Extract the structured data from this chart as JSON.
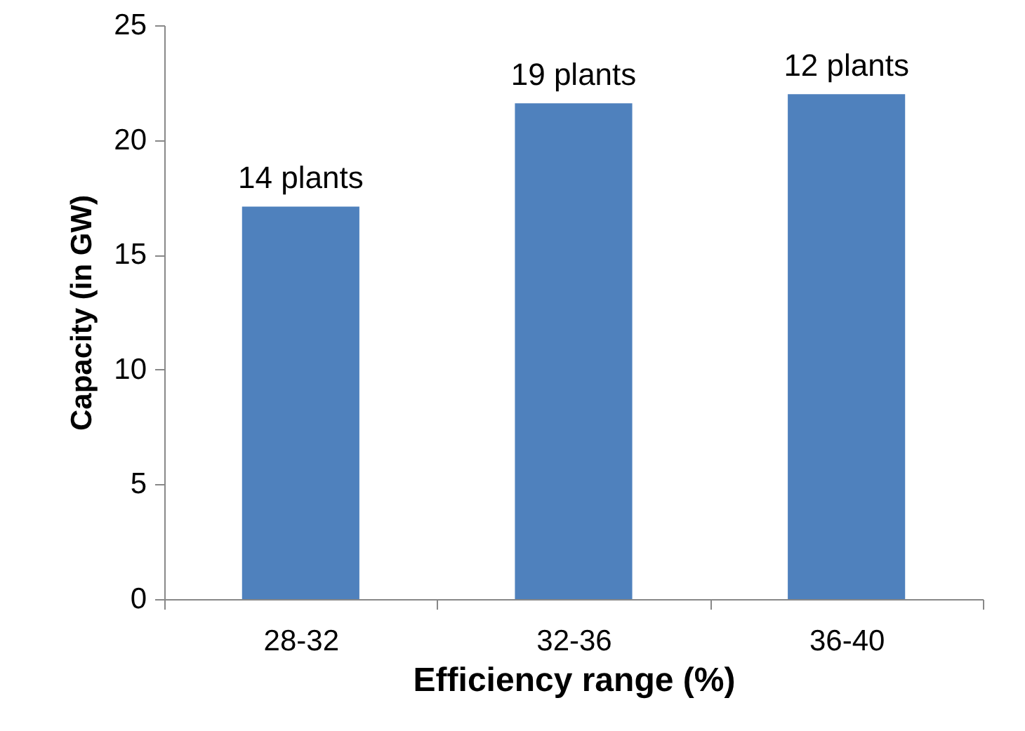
{
  "chart_data": {
    "type": "bar",
    "xlabel": "Efficiency range (%)",
    "ylabel": "Capacity (in GW)",
    "categories": [
      "28-32",
      "32-36",
      "36-40"
    ],
    "values": [
      17.1,
      21.6,
      22.0
    ],
    "annotations": [
      {
        "text": "14 plants",
        "x": "28-32",
        "y": 17.1
      },
      {
        "text": "19 plants",
        "x": "32-36",
        "y": 21.6
      },
      {
        "text": "12 plants",
        "x": "36-40",
        "y": 22.0
      }
    ],
    "color": "#4f81bd",
    "ylim": [
      0,
      25
    ],
    "yticks": [
      0,
      5,
      10,
      15,
      20,
      25
    ],
    "grid": false
  }
}
